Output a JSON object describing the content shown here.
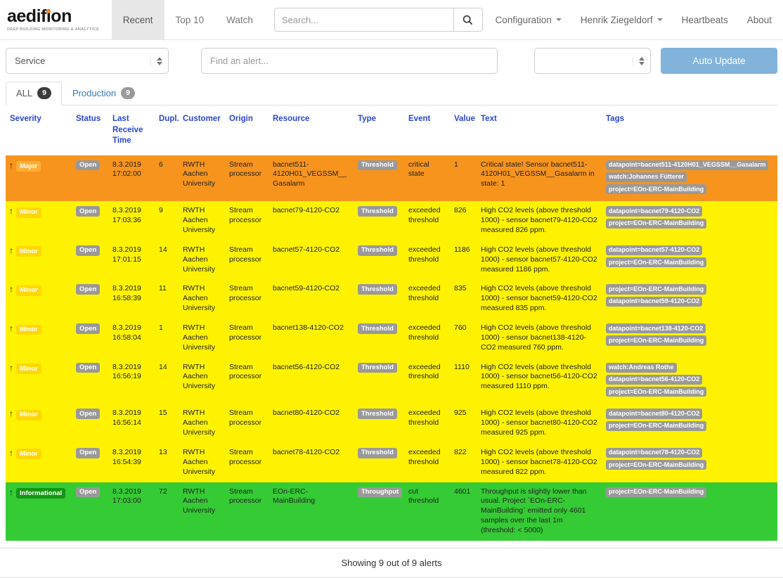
{
  "brand": {
    "name": "aedifion",
    "tagline": "DEEP BUILDING MONITORING & ANALYTICS"
  },
  "nav": {
    "items": [
      {
        "label": "Recent",
        "active": true
      },
      {
        "label": "Top 10",
        "active": false
      },
      {
        "label": "Watch",
        "active": false
      }
    ],
    "search_placeholder": "Search...",
    "right_items": [
      {
        "label": "Configuration",
        "caret": true
      },
      {
        "label": "Henrik Ziegeldorf",
        "caret": true
      },
      {
        "label": "Heartbeats",
        "caret": false
      },
      {
        "label": "About",
        "caret": false
      }
    ]
  },
  "filters": {
    "service_label": "Service",
    "find_alert_placeholder": "Find an alert...",
    "group_label": "",
    "auto_update_label": "Auto Update"
  },
  "tabs": [
    {
      "label": "ALL",
      "count": "9",
      "active": true
    },
    {
      "label": "Production",
      "count": "9",
      "active": false
    }
  ],
  "table": {
    "columns": [
      "Severity",
      "Status",
      "Last Receive Time",
      "Dupl.",
      "Customer",
      "Origin",
      "Resource",
      "Type",
      "Event",
      "Value",
      "Text",
      "Tags"
    ],
    "rows": [
      {
        "severity": "Major",
        "severity_key": "major",
        "status": "Open",
        "date": "8.3.2019",
        "time": "17:02:00",
        "dupl": "6",
        "customer": "RWTH Aachen University",
        "origin": "Stream processor",
        "resource": "bacnet511-4120H01_VEGSSM__Gasalarm",
        "type": "Threshold",
        "event": "critical state",
        "value": "1",
        "text": "Critical state! Sensor bacnet511-4120H01_VEGSSM__Gasalarm in state: 1",
        "tags": [
          "datapoint=bacnet511-4120H01_VEGSSM__Gasalarm",
          "watch:Johannes Fütterer",
          "project=EOn-ERC-MainBuilding"
        ]
      },
      {
        "severity": "Minor",
        "severity_key": "minor",
        "status": "Open",
        "date": "8.3.2019",
        "time": "17:03:36",
        "dupl": "9",
        "customer": "RWTH Aachen University",
        "origin": "Stream processor",
        "resource": "bacnet79-4120-CO2",
        "type": "Threshold",
        "event": "exceeded threshold",
        "value": "826",
        "text": "High CO2 levels (above threshold 1000) - sensor bacnet79-4120-CO2 measured 826 ppm.",
        "tags": [
          "datapoint=bacnet79-4120-CO2",
          "project=EOn-ERC-MainBuilding"
        ]
      },
      {
        "severity": "Minor",
        "severity_key": "minor",
        "status": "Open",
        "date": "8.3.2019",
        "time": "17:01:15",
        "dupl": "14",
        "customer": "RWTH Aachen University",
        "origin": "Stream processor",
        "resource": "bacnet57-4120-CO2",
        "type": "Threshold",
        "event": "exceeded threshold",
        "value": "1186",
        "text": "High CO2 levels (above threshold 1000) - sensor bacnet57-4120-CO2 measured 1186 ppm.",
        "tags": [
          "datapoint=bacnet57-4120-CO2",
          "project=EOn-ERC-MainBuilding"
        ]
      },
      {
        "severity": "Minor",
        "severity_key": "minor",
        "status": "Open",
        "date": "8.3.2019",
        "time": "16:58:39",
        "dupl": "11",
        "customer": "RWTH Aachen University",
        "origin": "Stream processor",
        "resource": "bacnet59-4120-CO2",
        "type": "Threshold",
        "event": "exceeded threshold",
        "value": "835",
        "text": "High CO2 levels (above threshold 1000) - sensor bacnet59-4120-CO2 measured 835 ppm.",
        "tags": [
          "project=EOn-ERC-MainBuilding",
          "datapoint=bacnet59-4120-CO2"
        ]
      },
      {
        "severity": "Minor",
        "severity_key": "minor",
        "status": "Open",
        "date": "8.3.2019",
        "time": "16:58:04",
        "dupl": "1",
        "customer": "RWTH Aachen University",
        "origin": "Stream processor",
        "resource": "bacnet138-4120-CO2",
        "type": "Threshold",
        "event": "exceeded threshold",
        "value": "760",
        "text": "High CO2 levels (above threshold 1000) - sensor bacnet138-4120-CO2 measured 760 ppm.",
        "tags": [
          "datapoint=bacnet138-4120-CO2",
          "project=EOn-ERC-MainBuilding"
        ]
      },
      {
        "severity": "Minor",
        "severity_key": "minor",
        "status": "Open",
        "date": "8.3.2019",
        "time": "16:56:19",
        "dupl": "14",
        "customer": "RWTH Aachen University",
        "origin": "Stream processor",
        "resource": "bacnet56-4120-CO2",
        "type": "Threshold",
        "event": "exceeded threshold",
        "value": "1110",
        "text": "High CO2 levels (above threshold 1000) - sensor bacnet56-4120-CO2 measured 1110 ppm.",
        "tags": [
          "watch:Andreas Rothe",
          "datapoint=bacnet56-4120-CO2",
          "project=EOn-ERC-MainBuilding"
        ]
      },
      {
        "severity": "Minor",
        "severity_key": "minor",
        "status": "Open",
        "date": "8.3.2019",
        "time": "16:56:14",
        "dupl": "15",
        "customer": "RWTH Aachen University",
        "origin": "Stream processor",
        "resource": "bacnet80-4120-CO2",
        "type": "Threshold",
        "event": "exceeded threshold",
        "value": "925",
        "text": "High CO2 levels (above threshold 1000) - sensor bacnet80-4120-CO2 measured 925 ppm.",
        "tags": [
          "datapoint=bacnet80-4120-CO2",
          "project=EOn-ERC-MainBuilding"
        ]
      },
      {
        "severity": "Minor",
        "severity_key": "minor",
        "status": "Open",
        "date": "8.3.2019",
        "time": "16:54:39",
        "dupl": "13",
        "customer": "RWTH Aachen University",
        "origin": "Stream processor",
        "resource": "bacnet78-4120-CO2",
        "type": "Threshold",
        "event": "exceeded threshold",
        "value": "822",
        "text": "High CO2 levels (above threshold 1000) - sensor bacnet78-4120-CO2 measured 822 ppm.",
        "tags": [
          "datapoint=bacnet78-4120-CO2",
          "project=EOn-ERC-MainBuilding"
        ]
      },
      {
        "severity": "Informational",
        "severity_key": "informational",
        "status": "Open",
        "date": "8.3.2019",
        "time": "17:03:00",
        "dupl": "72",
        "customer": "RWTH Aachen University",
        "origin": "Stream processor",
        "resource": "EOn-ERC-MainBuilding",
        "type": "Throughput",
        "event": "cut threshold",
        "value": "4601",
        "text": "Throughput is slightly lower than usual. Project `EOn-ERC-MainBuilding` emitted only 4601 samples over the last 1m (threshold: < 5000)",
        "tags": [
          "project=EOn-ERC-MainBuilding"
        ]
      }
    ]
  },
  "footer": {
    "text": "Showing 9 out of 9 alerts"
  },
  "colors": {
    "major_row": "#f7941e",
    "major_badge": "#ffad33",
    "minor_row": "#fff200",
    "minor_badge": "#ffd700",
    "informational_row": "#35cb35",
    "informational_badge": "#149614",
    "gray_badge": "#999999",
    "header_link": "#2b45d4",
    "link_blue": "#337ab7",
    "auto_update": "#82b3da",
    "brand_accent": "#f58220"
  }
}
